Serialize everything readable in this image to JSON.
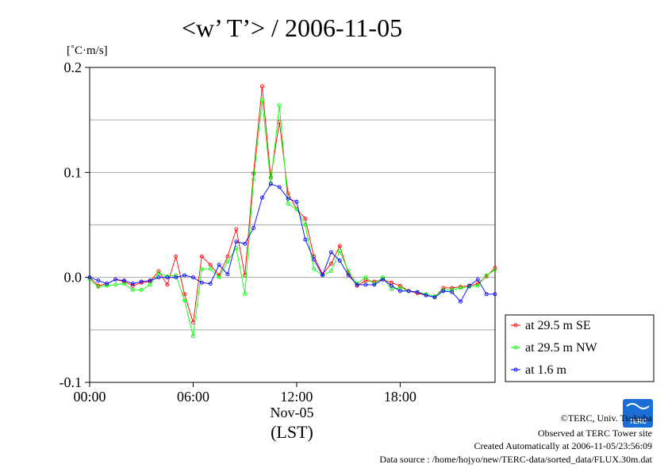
{
  "chart_data": {
    "type": "line",
    "title": "<w’ T’> / 2006-11-05",
    "ylabel": "[˚C·m/s]",
    "xlabel_date": "Nov-05",
    "xlabel": "(LST)",
    "xlim": [
      0,
      23.5
    ],
    "ylim": [
      -0.1,
      0.2
    ],
    "x_ticks": [
      "00:00",
      "06:00",
      "12:00",
      "18:00"
    ],
    "x_tick_values": [
      0,
      6,
      12,
      18
    ],
    "y_ticks": [
      "0.2",
      "0.1",
      "0.0",
      "-0.1"
    ],
    "y_tick_values": [
      0.2,
      0.1,
      0.0,
      -0.1
    ],
    "grid": true,
    "legend_position": "bottom-right outside",
    "x": [
      0.0,
      0.5,
      1.0,
      1.5,
      2.0,
      2.5,
      3.0,
      3.5,
      4.0,
      4.5,
      5.0,
      5.5,
      6.0,
      6.5,
      7.0,
      7.5,
      8.0,
      8.5,
      9.0,
      9.5,
      10.0,
      10.5,
      11.0,
      11.5,
      12.0,
      12.5,
      13.0,
      13.5,
      14.0,
      14.5,
      15.0,
      15.5,
      16.0,
      16.5,
      17.0,
      17.5,
      18.0,
      18.5,
      19.0,
      19.5,
      20.0,
      20.5,
      21.0,
      21.5,
      22.0,
      22.5,
      23.0,
      23.5
    ],
    "series": [
      {
        "name": "at 29.5 m SE",
        "color": "#ff0000",
        "values": [
          0.0,
          -0.008,
          -0.006,
          -0.002,
          -0.004,
          -0.008,
          -0.005,
          -0.004,
          0.006,
          -0.007,
          0.02,
          -0.016,
          -0.043,
          0.02,
          0.012,
          0.002,
          0.02,
          0.046,
          0.002,
          0.099,
          0.182,
          0.095,
          0.148,
          0.08,
          0.065,
          0.056,
          0.02,
          0.003,
          0.013,
          0.03,
          0.004,
          -0.008,
          -0.003,
          -0.004,
          -0.002,
          -0.005,
          -0.008,
          -0.013,
          -0.015,
          -0.017,
          -0.019,
          -0.01,
          -0.01,
          -0.009,
          -0.008,
          -0.006,
          0.001,
          0.009
        ]
      },
      {
        "name": "at 29.5 m NW",
        "color": "#00ff00",
        "values": [
          -0.002,
          -0.009,
          -0.008,
          -0.007,
          -0.006,
          -0.012,
          -0.012,
          -0.007,
          0.004,
          0.001,
          0.002,
          -0.022,
          -0.056,
          0.008,
          0.008,
          0.0,
          0.015,
          0.028,
          -0.016,
          0.093,
          0.169,
          0.09,
          0.164,
          0.07,
          0.065,
          0.05,
          0.008,
          0.002,
          0.006,
          0.025,
          0.006,
          -0.006,
          0.0,
          -0.006,
          0.0,
          -0.011,
          -0.01,
          -0.013,
          -0.014,
          -0.016,
          -0.018,
          -0.012,
          -0.012,
          -0.01,
          -0.009,
          -0.008,
          0.002,
          0.007
        ]
      },
      {
        "name": "at 1.6 m",
        "color": "#0000ff",
        "values": [
          0.0,
          -0.003,
          -0.006,
          -0.002,
          -0.003,
          -0.006,
          -0.004,
          -0.003,
          0.0,
          0.0,
          0.0,
          0.002,
          0.0,
          -0.005,
          -0.006,
          0.012,
          0.003,
          0.034,
          0.032,
          0.047,
          0.076,
          0.089,
          0.086,
          0.075,
          0.072,
          0.036,
          0.017,
          0.002,
          0.024,
          0.016,
          0.002,
          -0.007,
          -0.007,
          -0.007,
          -0.002,
          -0.008,
          -0.013,
          -0.013,
          -0.014,
          -0.017,
          -0.019,
          -0.013,
          -0.014,
          -0.023,
          -0.008,
          -0.002,
          -0.016,
          -0.016
        ]
      }
    ]
  },
  "credits": {
    "copyright": "©TERC, Univ. Tsukuba",
    "observed": "Observed at TERC Tower site",
    "created": "Created Automatically at 2006-11-05/23:56:09",
    "source": "Data source : /home/hojyo/new/TERC-data/sorted_data/FLUX.30m.dat"
  },
  "logo": {
    "text": "TERC",
    "color": "#1a6fd6"
  }
}
